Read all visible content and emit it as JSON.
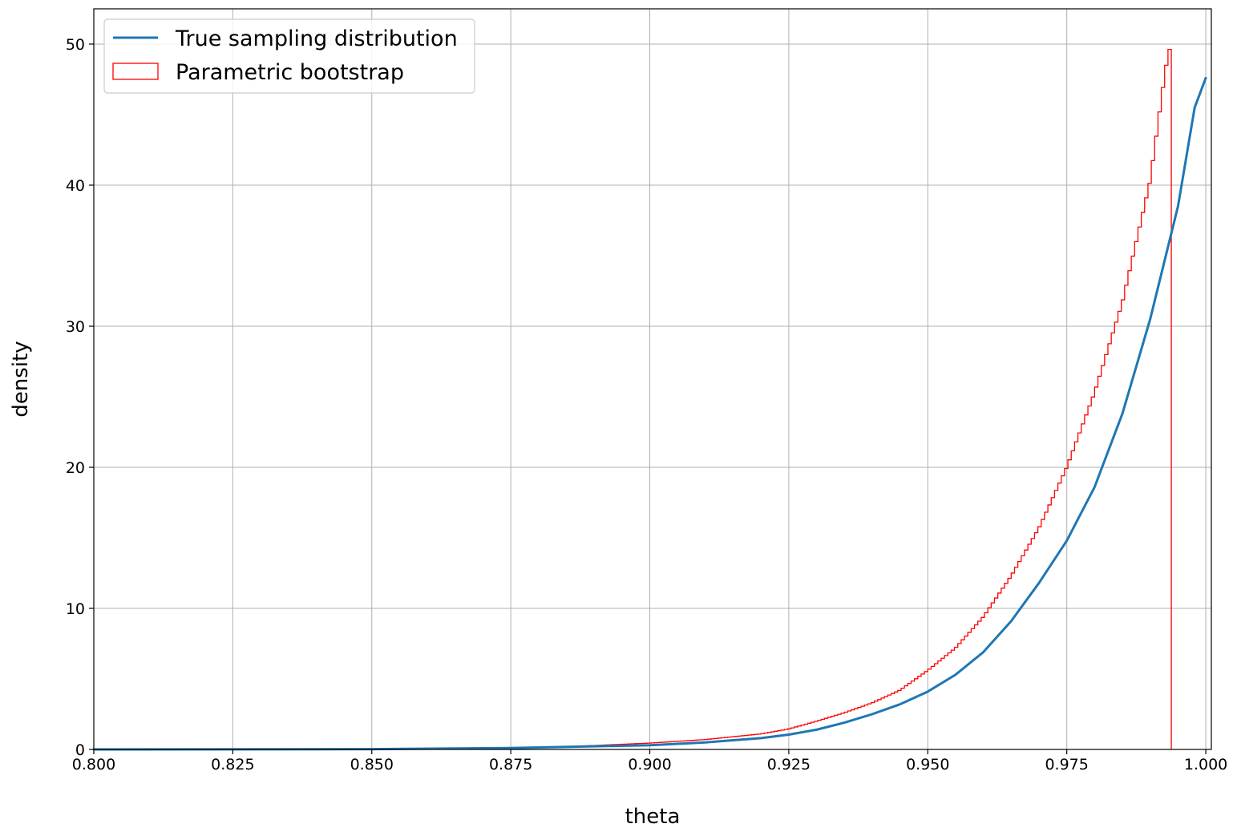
{
  "chart_data": {
    "type": "line",
    "xlabel": "theta",
    "ylabel": "density",
    "xlim": [
      0.8,
      1.001
    ],
    "ylim": [
      0,
      52.5
    ],
    "grid": true,
    "legend_position": "top-left",
    "x_ticks": [
      "0.800",
      "0.825",
      "0.850",
      "0.875",
      "0.900",
      "0.925",
      "0.950",
      "0.975",
      "1.000"
    ],
    "x_tick_values": [
      0.8,
      0.825,
      0.85,
      0.875,
      0.9,
      0.925,
      0.95,
      0.975,
      1.0
    ],
    "y_ticks": [
      "0",
      "10",
      "20",
      "30",
      "40",
      "50"
    ],
    "y_tick_values": [
      0,
      10,
      20,
      30,
      40,
      50
    ],
    "series": [
      {
        "name": "True sampling distribution",
        "kind": "line",
        "color": "#1f77b4",
        "x": [
          0.8,
          0.85,
          0.875,
          0.9,
          0.91,
          0.92,
          0.925,
          0.93,
          0.935,
          0.94,
          0.945,
          0.95,
          0.955,
          0.96,
          0.965,
          0.97,
          0.975,
          0.98,
          0.985,
          0.99,
          0.995,
          0.998,
          1.0
        ],
        "y": [
          0.0,
          0.02,
          0.1,
          0.3,
          0.5,
          0.8,
          1.05,
          1.4,
          1.9,
          2.5,
          3.2,
          4.1,
          5.3,
          6.9,
          9.1,
          11.8,
          14.8,
          18.6,
          23.8,
          30.5,
          38.5,
          45.5,
          47.6
        ]
      },
      {
        "name": "Parametric bootstrap",
        "kind": "step",
        "color": "#ff0000",
        "x": [
          0.8,
          0.85,
          0.875,
          0.885,
          0.89,
          0.9,
          0.91,
          0.92,
          0.925,
          0.93,
          0.935,
          0.94,
          0.945,
          0.95,
          0.955,
          0.96,
          0.965,
          0.97,
          0.975,
          0.98,
          0.985,
          0.99,
          0.9925,
          0.9935
        ],
        "y": [
          0.0,
          0.03,
          0.12,
          0.2,
          0.28,
          0.45,
          0.7,
          1.1,
          1.45,
          2.0,
          2.6,
          3.3,
          4.2,
          5.6,
          7.2,
          9.4,
          12.3,
          15.7,
          20.0,
          25.3,
          31.7,
          40.3,
          47.5,
          50.0
        ]
      }
    ]
  }
}
